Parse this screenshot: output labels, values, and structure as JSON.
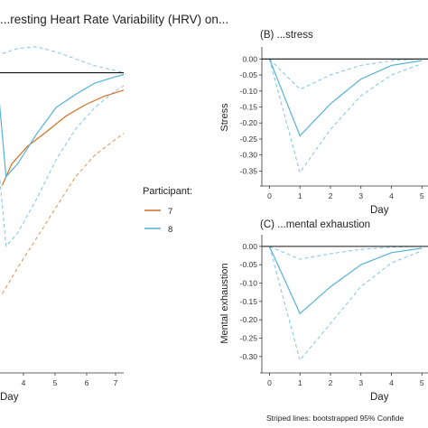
{
  "figure": {
    "title": "...resting Heart Rate Variability (HRV) on...",
    "caption": "Striped lines: bootstrapped 95% Confide"
  },
  "legend": {
    "title": "Participant:",
    "items": [
      {
        "label": "7",
        "color": "#d96c1a"
      },
      {
        "label": "8",
        "color": "#56b1d8"
      }
    ]
  },
  "chart_data": [
    {
      "id": "A",
      "type": "line",
      "title": "",
      "xlabel": "Day",
      "ylabel": "",
      "xticks": [
        "4",
        "5",
        "6",
        "7"
      ],
      "xlim": [
        0.4,
        7
      ],
      "ylim": [
        -0.34,
        0.035
      ],
      "zero_line": 0,
      "series": [
        {
          "name": "7",
          "color": "#d96c1a",
          "dashed": false,
          "x": [
            0.7,
            1.2,
            2,
            3,
            4,
            5,
            6,
            7
          ],
          "y": [
            -0.13,
            -0.105,
            -0.085,
            -0.068,
            -0.05,
            -0.037,
            -0.027,
            -0.02
          ]
        },
        {
          "name": "7 CI",
          "color": "#d96c1a",
          "dashed": true,
          "x": [
            0.7,
            1.5,
            2.5,
            3.5,
            4.5,
            5.5,
            6.5,
            7
          ],
          "y": [
            -0.255,
            -0.225,
            -0.19,
            -0.155,
            -0.12,
            -0.095,
            -0.078,
            -0.07
          ]
        },
        {
          "name": "8",
          "color": "#56b1d8",
          "dashed": false,
          "x": [
            0.4,
            0.9,
            1.5,
            2.5,
            3.5,
            4.5,
            5.5,
            6.5,
            7
          ],
          "y": [
            0.005,
            -0.12,
            -0.105,
            -0.07,
            -0.04,
            -0.025,
            -0.012,
            -0.005,
            -0.002
          ]
        },
        {
          "name": "8 CI upper",
          "color": "#56b1d8",
          "dashed": true,
          "x": [
            0.4,
            1.5,
            2.5,
            3.5,
            4.5,
            5.5,
            6.5,
            7
          ],
          "y": [
            0.02,
            0.028,
            0.03,
            0.024,
            0.016,
            0.008,
            0.003,
            0.0
          ]
        },
        {
          "name": "8 CI lower",
          "color": "#56b1d8",
          "dashed": true,
          "x": [
            0.4,
            0.9,
            1.5,
            2.5,
            3.5,
            4.5,
            5.5,
            6.5,
            7
          ],
          "y": [
            -0.08,
            -0.2,
            -0.185,
            -0.145,
            -0.1,
            -0.065,
            -0.04,
            -0.022,
            -0.015
          ]
        }
      ]
    },
    {
      "id": "B",
      "type": "line",
      "title": "(B) ...stress",
      "xlabel": "Day",
      "ylabel": "Stress",
      "xticks": [
        "0",
        "1",
        "2",
        "3",
        "4",
        "5"
      ],
      "yticks": [
        "0.00",
        "-0.05",
        "-0.10",
        "-0.15",
        "-0.20",
        "-0.25",
        "-0.30",
        "-0.35"
      ],
      "xlim": [
        -0.25,
        5.2
      ],
      "ylim": [
        -0.38,
        0.015
      ],
      "zero_line": 0,
      "series": [
        {
          "name": "8",
          "color": "#56b1d8",
          "dashed": false,
          "x": [
            0,
            1,
            2,
            3,
            4,
            5
          ],
          "y": [
            0.0,
            -0.24,
            -0.14,
            -0.063,
            -0.02,
            -0.005
          ]
        },
        {
          "name": "8 CI upper",
          "color": "#56b1d8",
          "dashed": true,
          "x": [
            0,
            1,
            2,
            3,
            4,
            5
          ],
          "y": [
            0.0,
            -0.095,
            -0.05,
            -0.02,
            -0.005,
            0.0
          ]
        },
        {
          "name": "8 CI lower",
          "color": "#56b1d8",
          "dashed": true,
          "x": [
            0,
            1,
            2,
            3,
            4,
            5
          ],
          "y": [
            0.0,
            -0.355,
            -0.22,
            -0.115,
            -0.05,
            -0.015
          ]
        }
      ]
    },
    {
      "id": "C",
      "type": "line",
      "title": "(C) ...mental exhaustion",
      "xlabel": "Day",
      "ylabel": "Mental exhaustion",
      "xticks": [
        "0",
        "1",
        "2",
        "3",
        "4",
        "5"
      ],
      "yticks": [
        "0.00",
        "-0.05",
        "-0.10",
        "-0.15",
        "-0.20",
        "-0.25",
        "-0.30"
      ],
      "xlim": [
        -0.25,
        5.2
      ],
      "ylim": [
        -0.33,
        0.012
      ],
      "zero_line": 0,
      "series": [
        {
          "name": "8",
          "color": "#56b1d8",
          "dashed": false,
          "x": [
            0,
            1,
            2,
            3,
            4,
            5
          ],
          "y": [
            0.0,
            -0.183,
            -0.11,
            -0.05,
            -0.017,
            -0.005
          ]
        },
        {
          "name": "8 CI upper",
          "color": "#56b1d8",
          "dashed": true,
          "x": [
            0,
            1,
            2,
            3,
            4,
            5
          ],
          "y": [
            0.0,
            -0.035,
            -0.02,
            -0.008,
            -0.002,
            0.0
          ]
        },
        {
          "name": "8 CI lower",
          "color": "#56b1d8",
          "dashed": true,
          "x": [
            0,
            1,
            2,
            3,
            4,
            5
          ],
          "y": [
            0.0,
            -0.31,
            -0.21,
            -0.11,
            -0.045,
            -0.012
          ]
        }
      ]
    }
  ]
}
